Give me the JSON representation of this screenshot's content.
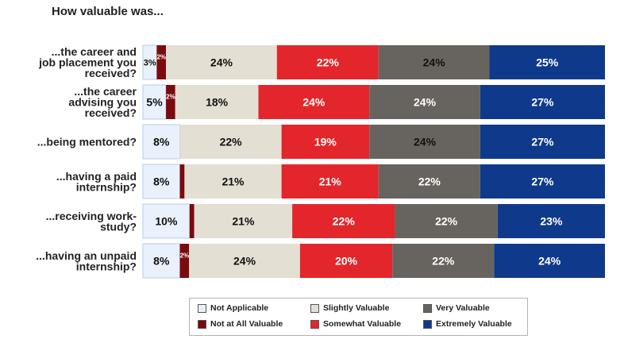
{
  "chart_data": {
    "type": "bar",
    "orientation": "horizontal",
    "stacked": true,
    "title": "How valuable was...",
    "categories": [
      "...the career and job placement you received?",
      "...the career advising you received?",
      "...being mentored?",
      "...having a paid internship?",
      "...receiving work-study?",
      "...having an unpaid internship?"
    ],
    "series": [
      {
        "name": "Not Applicable",
        "color": "#e9f1fc",
        "values": [
          3,
          5,
          8,
          8,
          10,
          8
        ]
      },
      {
        "name": "Not at All Valuable",
        "color": "#7b0a0f",
        "values": [
          2,
          2,
          0,
          1,
          1,
          2
        ]
      },
      {
        "name": "Slightly Valuable",
        "color": "#e3dfd2",
        "values": [
          24,
          18,
          22,
          21,
          21,
          24
        ]
      },
      {
        "name": "Somewhat Valuable",
        "color": "#e3262b",
        "values": [
          22,
          24,
          19,
          21,
          22,
          20
        ]
      },
      {
        "name": "Very Valuable",
        "color": "#67645f",
        "values": [
          24,
          24,
          24,
          22,
          22,
          22
        ]
      },
      {
        "name": "Extremely Valuable",
        "color": "#0f3a8c",
        "values": [
          25,
          27,
          27,
          27,
          23,
          24
        ]
      }
    ],
    "data_labels": [
      [
        "3%",
        "2%",
        "24%",
        "22%",
        "24%",
        "25%"
      ],
      [
        "5%",
        "2%",
        "18%",
        "24%",
        "24%",
        "27%"
      ],
      [
        "8%",
        "",
        "22%",
        "19%",
        "24%",
        "27%"
      ],
      [
        "8%",
        "",
        "21%",
        "21%",
        "22%",
        "27%"
      ],
      [
        "10%",
        "",
        "21%",
        "22%",
        "22%",
        "23%"
      ],
      [
        "8%",
        "2%",
        "24%",
        "20%",
        "22%",
        "24%"
      ]
    ],
    "xlim": [
      0,
      100
    ],
    "grid": false,
    "legend_position": "bottom"
  }
}
